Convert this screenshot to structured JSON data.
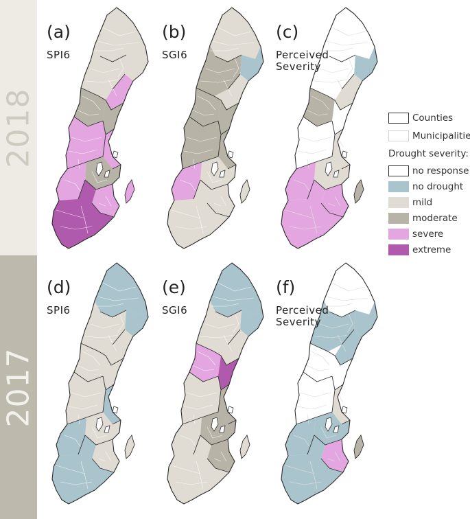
{
  "years": [
    {
      "label": "2018"
    },
    {
      "label": "2017"
    }
  ],
  "panels": [
    {
      "letter": "(a)",
      "title": [
        "SPI6"
      ],
      "scheme": "spi2018"
    },
    {
      "letter": "(b)",
      "title": [
        "SGI6"
      ],
      "scheme": "sgi2018"
    },
    {
      "letter": "(c)",
      "title": [
        "Perceived",
        "Severity"
      ],
      "scheme": "per2018"
    },
    {
      "letter": "(d)",
      "title": [
        "SPI6"
      ],
      "scheme": "spi2017"
    },
    {
      "letter": "(e)",
      "title": [
        "SGI6"
      ],
      "scheme": "sgi2017"
    },
    {
      "letter": "(f)",
      "title": [
        "Perceived",
        "Severity"
      ],
      "scheme": "per2017"
    }
  ],
  "legend": {
    "boundaries": [
      {
        "label": "Counties",
        "stroke": "#333333"
      },
      {
        "label": "Municipalities",
        "stroke": "#cfcfcf"
      }
    ],
    "heading": "Drought severity:",
    "classes": [
      {
        "key": "none",
        "label": "no response",
        "color": "#ffffff"
      },
      {
        "key": "nodrought",
        "label": "no drought",
        "color": "#a9c4cc"
      },
      {
        "key": "mild",
        "label": "mild",
        "color": "#e0dcd3"
      },
      {
        "key": "moderate",
        "label": "moderate",
        "color": "#b7b3a6"
      },
      {
        "key": "severe",
        "label": "severe",
        "color": "#e3a6e0"
      },
      {
        "key": "extreme",
        "label": "extreme",
        "color": "#b05aad"
      }
    ]
  },
  "regions": [
    "north",
    "north-coast",
    "mid-north",
    "mid-coast",
    "central",
    "central-east",
    "east-coast",
    "west",
    "mid-south",
    "south-east",
    "south-west",
    "south",
    "gotland"
  ],
  "schemes": {
    "spi2018": {
      "base": "mild",
      "north": "mild",
      "north-coast": "mild",
      "mid-north": "mild",
      "mid-coast": "severe",
      "central": "moderate",
      "central-east": "moderate",
      "east-coast": "severe",
      "west": "severe",
      "mid-south": "moderate",
      "south-east": "severe",
      "south-west": "severe",
      "south": "extreme",
      "gotland": "severe"
    },
    "sgi2018": {
      "base": "mild",
      "north": "mild",
      "north-coast": "nodrought",
      "mid-north": "moderate",
      "mid-coast": "mild",
      "central": "moderate",
      "central-east": "moderate",
      "east-coast": "moderate",
      "west": "moderate",
      "mid-south": "mild",
      "south-east": "mild",
      "south-west": "severe",
      "south": "mild",
      "gotland": "mild"
    },
    "per2018": {
      "base": "none",
      "north": "none",
      "north-coast": "nodrought",
      "mid-north": "none",
      "mid-coast": "mild",
      "central": "moderate",
      "central-east": "none",
      "east-coast": "mild",
      "west": "none",
      "mid-south": "mild",
      "south-east": "severe",
      "south-west": "severe",
      "south": "severe",
      "gotland": "moderate"
    },
    "spi2017": {
      "base": "mild",
      "north": "nodrought",
      "north-coast": "nodrought",
      "mid-north": "mild",
      "mid-coast": "mild",
      "central": "mild",
      "central-east": "mild",
      "east-coast": "nodrought",
      "west": "mild",
      "mid-south": "mild",
      "south-east": "mild",
      "south-west": "nodrought",
      "south": "nodrought",
      "gotland": "mild"
    },
    "sgi2017": {
      "base": "mild",
      "north": "nodrought",
      "north-coast": "nodrought",
      "mid-north": "mild",
      "mid-coast": "mild",
      "central": "severe",
      "central-east": "extreme",
      "east-coast": "moderate",
      "west": "mild",
      "mid-south": "moderate",
      "south-east": "moderate",
      "south-west": "mild",
      "south": "mild",
      "gotland": "mild"
    },
    "per2017": {
      "base": "none",
      "north": "none",
      "north-coast": "nodrought",
      "mid-north": "nodrought",
      "mid-coast": "nodrought",
      "central": "none",
      "central-east": "none",
      "east-coast": "mild",
      "west": "none",
      "mid-south": "nodrought",
      "south-east": "severe",
      "south-west": "nodrought",
      "south": "nodrought",
      "gotland": "moderate"
    }
  }
}
